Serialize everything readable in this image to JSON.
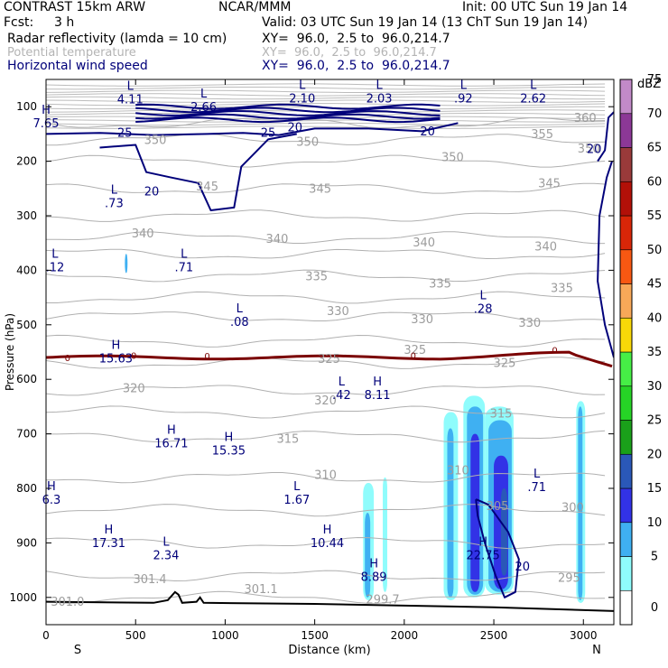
{
  "header": {
    "title": "CONTRAST 15km ARW",
    "org": "NCAR/MMM",
    "init": "Init: 00 UTC Sun 19 Jan 14",
    "fcst_label": "Fcst:",
    "fcst_value": "3 h",
    "valid": "Valid: 03 UTC Sun 19 Jan 14 (13 ChT Sun 19 Jan 14)",
    "fields": [
      {
        "name": "Radar reflectivity (lamda = 10 cm)",
        "xy": "XY=  96.0,  2.5 to  96.0,214.7",
        "color": "#000000"
      },
      {
        "name": "Potential temperature",
        "xy": "XY=  96.0,  2.5 to  96.0,214.7",
        "color": "#b4b4b4"
      },
      {
        "name": "Horizontal wind speed",
        "xy": "XY=  96.0,  2.5 to  96.0,214.7",
        "color": "#00007a"
      }
    ]
  },
  "chart_data": {
    "type": "heatmap",
    "title": "Cross section: radar reflectivity, potential temperature, horizontal wind speed",
    "xlabel": "Distance (km)",
    "ylabel": "Pressure (hPa)",
    "xlim": [
      0,
      3170
    ],
    "ylim": [
      1050,
      50
    ],
    "x_ticks": [
      "0",
      "500",
      "1000",
      "1500",
      "2000",
      "2500",
      "3000"
    ],
    "y_ticks": [
      "100",
      "200",
      "300",
      "400",
      "500",
      "600",
      "700",
      "800",
      "900",
      "1000"
    ],
    "end_labels": {
      "left": "S",
      "right": "N"
    },
    "colorbar": {
      "units": "dBZ",
      "levels": [
        "0",
        "5",
        "10",
        "15",
        "20",
        "25",
        "30",
        "35",
        "40",
        "45",
        "50",
        "55",
        "60",
        "65",
        "70",
        "75"
      ],
      "colors": [
        "#ffffff",
        "#8ffcfc",
        "#3fb0f2",
        "#3232e6",
        "#2a58b8",
        "#1aa01a",
        "#26d426",
        "#46ee46",
        "#f8d808",
        "#f8a858",
        "#f85812",
        "#d82608",
        "#b21008",
        "#993a3a",
        "#8c3896",
        "#c28ac8"
      ]
    },
    "theta_labels": [
      {
        "x": 3010,
        "p": 128,
        "text": "360"
      },
      {
        "x": 2770,
        "p": 158,
        "text": "355"
      },
      {
        "x": 610,
        "p": 168,
        "text": "350"
      },
      {
        "x": 1460,
        "p": 172,
        "text": "350"
      },
      {
        "x": 2270,
        "p": 200,
        "text": "350"
      },
      {
        "x": 3030,
        "p": 184,
        "text": "350"
      },
      {
        "x": 900,
        "p": 254,
        "text": "345"
      },
      {
        "x": 1530,
        "p": 258,
        "text": "345"
      },
      {
        "x": 2810,
        "p": 248,
        "text": "345"
      },
      {
        "x": 540,
        "p": 340,
        "text": "340"
      },
      {
        "x": 1290,
        "p": 350,
        "text": "340"
      },
      {
        "x": 2110,
        "p": 356,
        "text": "340"
      },
      {
        "x": 2790,
        "p": 364,
        "text": "340"
      },
      {
        "x": 1510,
        "p": 418,
        "text": "335"
      },
      {
        "x": 2200,
        "p": 432,
        "text": "335"
      },
      {
        "x": 2880,
        "p": 440,
        "text": "335"
      },
      {
        "x": 1630,
        "p": 482,
        "text": "330"
      },
      {
        "x": 2100,
        "p": 497,
        "text": "330"
      },
      {
        "x": 2700,
        "p": 504,
        "text": "330"
      },
      {
        "x": 2060,
        "p": 553,
        "text": "325"
      },
      {
        "x": 1580,
        "p": 570,
        "text": "325"
      },
      {
        "x": 2560,
        "p": 577,
        "text": "325"
      },
      {
        "x": 490,
        "p": 624,
        "text": "320"
      },
      {
        "x": 1560,
        "p": 646,
        "text": "320"
      },
      {
        "x": 1350,
        "p": 716,
        "text": "315"
      },
      {
        "x": 2540,
        "p": 670,
        "text": "315"
      },
      {
        "x": 1560,
        "p": 783,
        "text": "310"
      },
      {
        "x": 2300,
        "p": 774,
        "text": "310"
      },
      {
        "x": 2520,
        "p": 840,
        "text": "305"
      },
      {
        "x": 2940,
        "p": 842,
        "text": "300"
      },
      {
        "x": 2920,
        "p": 971,
        "text": "295"
      },
      {
        "x": 580,
        "p": 974,
        "text": "301.4"
      },
      {
        "x": 1200,
        "p": 992,
        "text": "301.1"
      },
      {
        "x": 1880,
        "p": 1011,
        "text": "299.7"
      },
      {
        "x": 120,
        "p": 1015,
        "text": "301.0"
      }
    ],
    "theta_levels": [
      {
        "p": 335,
        "label": "340"
      },
      {
        "p": 360,
        "label": ""
      },
      {
        "p": 405,
        "label": "335"
      },
      {
        "p": 480,
        "label": "330"
      },
      {
        "p": 530,
        "label": "325"
      },
      {
        "p": 620,
        "label": "320"
      },
      {
        "p": 700,
        "label": "315"
      },
      {
        "p": 780,
        "label": "310"
      },
      {
        "p": 250,
        "label": "345"
      },
      {
        "p": 200,
        "label": "350"
      }
    ],
    "wind_contour_labels": [
      {
        "x": 440,
        "p": 155,
        "text": "25"
      },
      {
        "x": 1240,
        "p": 155,
        "text": "25"
      },
      {
        "x": 1390,
        "p": 145,
        "text": "20"
      },
      {
        "x": 2130,
        "p": 153,
        "text": "20"
      },
      {
        "x": 590,
        "p": 263,
        "text": "20"
      },
      {
        "x": 3060,
        "p": 185,
        "text": "20"
      },
      {
        "x": 2660,
        "p": 951,
        "text": "20"
      }
    ],
    "extrema": [
      {
        "kind": "L",
        "value": "4.11",
        "x": 470,
        "p": 84
      },
      {
        "kind": "L",
        "value": "2.66",
        "x": 880,
        "p": 98
      },
      {
        "kind": "L",
        "value": "2.10",
        "x": 1430,
        "p": 82
      },
      {
        "kind": "L",
        "value": "2.03",
        "x": 1860,
        "p": 82
      },
      {
        "kind": "L",
        "value": ".92",
        "x": 2330,
        "p": 82
      },
      {
        "kind": "L",
        "value": "2.62",
        "x": 2720,
        "p": 82
      },
      {
        "kind": "H",
        "value": "7.65",
        "x": 0,
        "p": 128
      },
      {
        "kind": "L",
        "value": ".73",
        "x": 380,
        "p": 274
      },
      {
        "kind": "L",
        "value": ".12",
        "x": 50,
        "p": 392
      },
      {
        "kind": "L",
        "value": ".71",
        "x": 770,
        "p": 392
      },
      {
        "kind": "L",
        "value": ".08",
        "x": 1080,
        "p": 492
      },
      {
        "kind": "L",
        "value": ".28",
        "x": 2440,
        "p": 468
      },
      {
        "kind": "H",
        "value": "15.63",
        "x": 390,
        "p": 559
      },
      {
        "kind": "L",
        "value": ".42",
        "x": 1650,
        "p": 626
      },
      {
        "kind": "H",
        "value": "8.11",
        "x": 1850,
        "p": 626
      },
      {
        "kind": "H",
        "value": "16.71",
        "x": 700,
        "p": 715
      },
      {
        "kind": "H",
        "value": "15.35",
        "x": 1020,
        "p": 728
      },
      {
        "kind": "L",
        "value": ".71",
        "x": 2740,
        "p": 795
      },
      {
        "kind": "H",
        "value": "6.3",
        "x": 30,
        "p": 818
      },
      {
        "kind": "L",
        "value": "1.67",
        "x": 1400,
        "p": 818
      },
      {
        "kind": "H",
        "value": "17.31",
        "x": 350,
        "p": 898
      },
      {
        "kind": "H",
        "value": "10.44",
        "x": 1570,
        "p": 898
      },
      {
        "kind": "L",
        "value": "2.34",
        "x": 670,
        "p": 920
      },
      {
        "kind": "H",
        "value": "22.75",
        "x": 2440,
        "p": 920
      },
      {
        "kind": "H",
        "value": "8.89",
        "x": 1830,
        "p": 960
      }
    ],
    "freezing_level_labels": [
      {
        "x": 120,
        "p": 560,
        "text": "0"
      },
      {
        "x": 490,
        "p": 556,
        "text": "0"
      },
      {
        "x": 900,
        "p": 557,
        "text": "0"
      },
      {
        "x": 2050,
        "p": 556,
        "text": "0"
      },
      {
        "x": 2840,
        "p": 546,
        "text": "0"
      }
    ],
    "reflectivity_cells": [
      {
        "x0": 1770,
        "x1": 1830,
        "p0": 790,
        "p1": 1005,
        "dbz": 5
      },
      {
        "x0": 1780,
        "x1": 1810,
        "p0": 845,
        "p1": 1000,
        "dbz": 10
      },
      {
        "x0": 1880,
        "x1": 1905,
        "p0": 780,
        "p1": 990,
        "dbz": 5
      },
      {
        "x0": 2220,
        "x1": 2300,
        "p0": 660,
        "p1": 1005,
        "dbz": 5
      },
      {
        "x0": 2240,
        "x1": 2275,
        "p0": 690,
        "p1": 1000,
        "dbz": 10
      },
      {
        "x0": 2330,
        "x1": 2450,
        "p0": 630,
        "p1": 1000,
        "dbz": 5
      },
      {
        "x0": 2350,
        "x1": 2440,
        "p0": 650,
        "p1": 995,
        "dbz": 10
      },
      {
        "x0": 2370,
        "x1": 2420,
        "p0": 700,
        "p1": 990,
        "dbz": 15
      },
      {
        "x0": 2450,
        "x1": 2610,
        "p0": 650,
        "p1": 995,
        "dbz": 5
      },
      {
        "x0": 2470,
        "x1": 2600,
        "p0": 675,
        "p1": 990,
        "dbz": 10
      },
      {
        "x0": 2500,
        "x1": 2580,
        "p0": 740,
        "p1": 985,
        "dbz": 15
      },
      {
        "x0": 2540,
        "x1": 2575,
        "p0": 800,
        "p1": 960,
        "dbz": 20
      },
      {
        "x0": 2960,
        "x1": 3010,
        "p0": 640,
        "p1": 1010,
        "dbz": 5
      },
      {
        "x0": 2970,
        "x1": 2995,
        "p0": 650,
        "p1": 1005,
        "dbz": 10
      },
      {
        "x0": 440,
        "x1": 455,
        "p0": 370,
        "p1": 405,
        "dbz": 10
      }
    ]
  }
}
